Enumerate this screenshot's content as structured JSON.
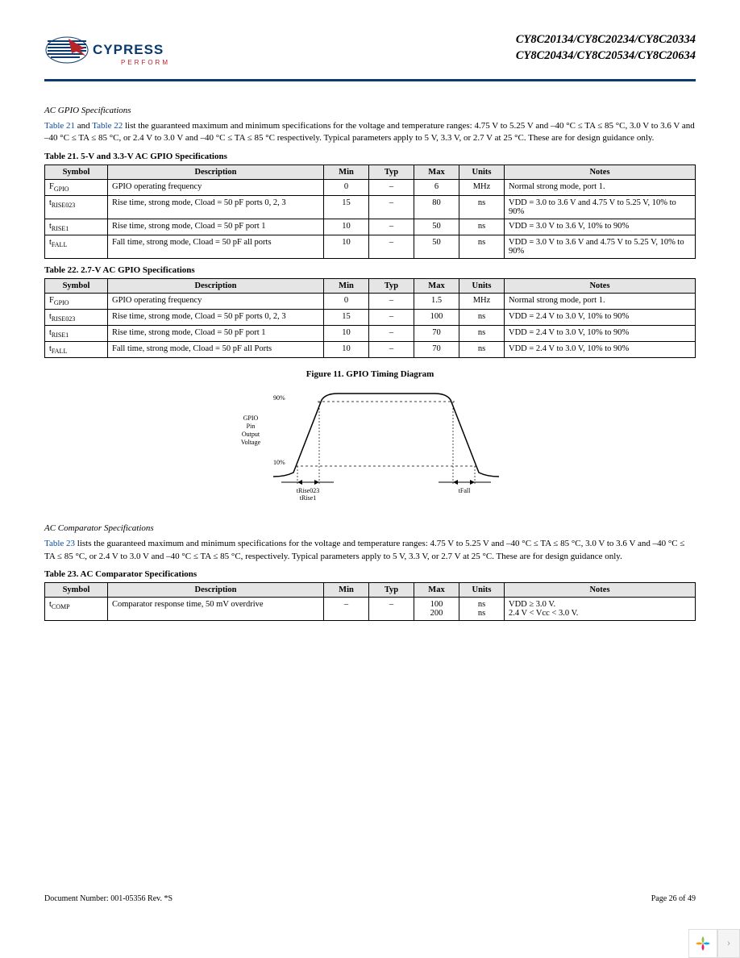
{
  "header": {
    "brand": "CYPRESS",
    "tagline": "PERFORM",
    "part_line1": "CY8C20134/CY8C20234/CY8C20334",
    "part_line2": "CY8C20434/CY8C20534/CY8C20634",
    "rule_color": "#0b3a6f"
  },
  "sec_gpio": {
    "title": "AC GPIO Specifications",
    "link1": "Table 21",
    "mid1": " and ",
    "link2": "Table 22",
    "rest": " list the guaranteed maximum and minimum specifications for the voltage and temperature ranges: 4.75 V to 5.25 V and –40 °C ≤ TA ≤ 85 °C, 3.0 V to 3.6 V and –40 °C ≤ TA ≤ 85 °C, or 2.4 V to 3.0 V and –40 °C ≤ TA ≤ 85 °C respectively. Typical parameters apply to 5 V, 3.3 V, or 2.7 V at 25 °C. These are for design guidance only."
  },
  "table21": {
    "caption": "Table 21.  5-V and 3.3-V AC GPIO Specifications",
    "columns": [
      "Symbol",
      "Description",
      "Min",
      "Typ",
      "Max",
      "Units",
      "Notes"
    ],
    "rows": [
      {
        "sym": "F",
        "sub": "GPIO",
        "desc": "GPIO operating frequency",
        "min": "0",
        "typ": "–",
        "max": "6",
        "units": "MHz",
        "notes": "Normal strong mode, port 1."
      },
      {
        "sym": "t",
        "sub": "RISE023",
        "desc": "Rise time, strong mode, Cload = 50 pF ports 0, 2, 3",
        "min": "15",
        "typ": "–",
        "max": "80",
        "units": "ns",
        "notes": "VDD = 3.0 to 3.6 V and 4.75 V to 5.25 V, 10% to 90%"
      },
      {
        "sym": "t",
        "sub": "RISE1",
        "desc": "Rise time, strong mode, Cload = 50 pF port 1",
        "min": "10",
        "typ": "–",
        "max": "50",
        "units": "ns",
        "notes": "VDD = 3.0 V to 3.6 V, 10% to 90%"
      },
      {
        "sym": "t",
        "sub": "FALL",
        "desc": "Fall time, strong mode, Cload = 50 pF all ports",
        "min": "10",
        "typ": "–",
        "max": "50",
        "units": "ns",
        "notes": "VDD = 3.0 V to 3.6 V and 4.75 V to 5.25 V, 10% to 90%"
      }
    ]
  },
  "table22": {
    "caption": "Table 22.  2.7-V AC GPIO Specifications",
    "columns": [
      "Symbol",
      "Description",
      "Min",
      "Typ",
      "Max",
      "Units",
      "Notes"
    ],
    "rows": [
      {
        "sym": "F",
        "sub": "GPIO",
        "desc": "GPIO operating frequency",
        "min": "0",
        "typ": "–",
        "max": "1.5",
        "units": "MHz",
        "notes": "Normal strong mode, port 1."
      },
      {
        "sym": "t",
        "sub": "RISE023",
        "desc": "Rise time, strong mode, Cload = 50 pF ports 0, 2, 3",
        "min": "15",
        "typ": "–",
        "max": "100",
        "units": "ns",
        "notes": "VDD = 2.4 V to 3.0 V, 10% to 90%"
      },
      {
        "sym": "t",
        "sub": "RISE1",
        "desc": "Rise time, strong mode, Cload = 50 pF port 1",
        "min": "10",
        "typ": "–",
        "max": "70",
        "units": "ns",
        "notes": "VDD = 2.4 V to 3.0 V, 10% to 90%"
      },
      {
        "sym": "t",
        "sub": "FALL",
        "desc": "Fall time, strong mode, Cload = 50 pF all Ports",
        "min": "10",
        "typ": "–",
        "max": "70",
        "units": "ns",
        "notes": "VDD = 2.4 V to 3.0 V, 10% to 90%"
      }
    ]
  },
  "figure": {
    "caption": "Figure 11.  GPIO Timing Diagram",
    "label_90": "90%",
    "label_10": "10%",
    "label_left": "GPIO Pin Output Voltage",
    "label_rise": "tRise023\ntRise1",
    "label_fall": "tFall",
    "stroke": "#000000",
    "dash_color": "#000000"
  },
  "sec_comp": {
    "title": "AC Comparator Specifications",
    "link1": "Table 23",
    "rest": " lists the guaranteed maximum and minimum specifications for the voltage and temperature ranges: 4.75 V to 5.25 V and –40 °C ≤ TA ≤ 85 °C, 3.0 V to 3.6 V and –40 °C ≤ TA ≤ 85 °C, or 2.4 V to 3.0 V and –40 °C ≤ TA ≤ 85 °C, respectively. Typical parameters apply to 5 V, 3.3 V, or 2.7 V at 25 °C. These are for design guidance only."
  },
  "table23": {
    "caption": "Table 23.  AC Comparator Specifications",
    "columns": [
      "Symbol",
      "Description",
      "Min",
      "Typ",
      "Max",
      "Units",
      "Notes"
    ],
    "rows": [
      {
        "sym": "t",
        "sub": "COMP",
        "desc": "Comparator response time, 50 mV overdrive",
        "min": "–",
        "typ": "–",
        "max": "100\n200",
        "units": "ns\nns",
        "notes": "VDD ≥ 3.0 V.\n2.4 V < Vcc < 3.0 V."
      }
    ]
  },
  "footer": {
    "doc": "Document Number: 001-05356 Rev. *S",
    "page": "Page 26 of 49"
  },
  "colors": {
    "link": "#0b4aa0",
    "th_bg": "#e5e5e5",
    "logo_blue": "#0b3a6f",
    "logo_red": "#b6252a"
  }
}
